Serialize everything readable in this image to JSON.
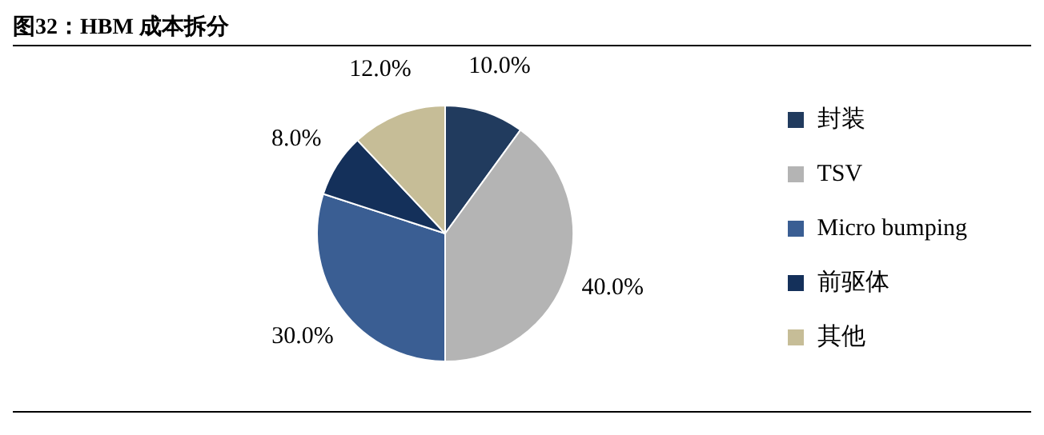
{
  "chart_data": {
    "type": "pie",
    "title": "图32：HBM 成本拆分",
    "categories": [
      "封装",
      "TSV",
      "Micro bumping",
      "前驱体",
      "其他"
    ],
    "values": [
      10,
      40,
      30,
      8,
      12
    ],
    "value_labels": [
      "10.0%",
      "40.0%",
      "30.0%",
      "8.0%",
      "12.0%"
    ],
    "colors": [
      "#213b5e",
      "#b4b4b4",
      "#3a5e93",
      "#14305a",
      "#c6bd97"
    ],
    "legend": "right"
  }
}
